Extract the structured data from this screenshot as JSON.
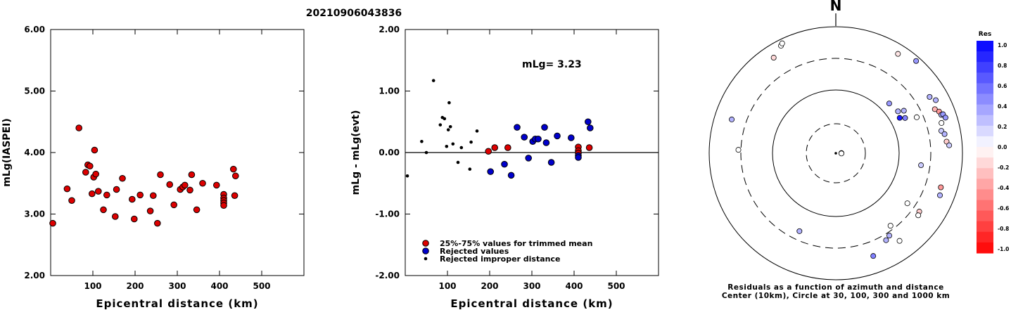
{
  "title": "20210906043836",
  "chart_data": [
    {
      "type": "scatter",
      "ylabel": "mLg(IASPEI)",
      "xlabel": "Epicentral distance (km)",
      "xlim": [
        0,
        600
      ],
      "ylim": [
        2.0,
        6.0
      ],
      "x_ticks": [
        "100",
        "200",
        "300",
        "400",
        "500"
      ],
      "y_ticks": [
        "2.00",
        "3.00",
        "4.00",
        "5.00",
        "6.00"
      ],
      "grid": false,
      "series": [
        {
          "color": "#dd0000",
          "points": [
            [
              5,
              2.85
            ],
            [
              39,
              3.41
            ],
            [
              50,
              3.22
            ],
            [
              67,
              4.4
            ],
            [
              83,
              3.68
            ],
            [
              88,
              3.8
            ],
            [
              93,
              3.78
            ],
            [
              98,
              3.33
            ],
            [
              102,
              3.6
            ],
            [
              104,
              4.04
            ],
            [
              107,
              3.65
            ],
            [
              113,
              3.37
            ],
            [
              125,
              3.07
            ],
            [
              133,
              3.31
            ],
            [
              153,
              2.96
            ],
            [
              156,
              3.4
            ],
            [
              170,
              3.58
            ],
            [
              193,
              3.24
            ],
            [
              198,
              2.92
            ],
            [
              212,
              3.31
            ],
            [
              236,
              3.05
            ],
            [
              243,
              3.3
            ],
            [
              253,
              2.85
            ],
            [
              260,
              3.64
            ],
            [
              282,
              3.48
            ],
            [
              292,
              3.15
            ],
            [
              307,
              3.4
            ],
            [
              313,
              3.44
            ],
            [
              318,
              3.47
            ],
            [
              330,
              3.39
            ],
            [
              334,
              3.64
            ],
            [
              346,
              3.07
            ],
            [
              360,
              3.5
            ],
            [
              393,
              3.47
            ],
            [
              410,
              3.32
            ],
            [
              410,
              3.26
            ],
            [
              410,
              3.22
            ],
            [
              410,
              3.18
            ],
            [
              410,
              3.14
            ],
            [
              433,
              3.73
            ],
            [
              436,
              3.3
            ],
            [
              438,
              3.62
            ]
          ]
        }
      ]
    },
    {
      "type": "scatter",
      "ylabel": "mLg - mLg(evt)",
      "xlabel": "Epicentral distance (km)",
      "annotation": "mLg= 3.23",
      "xlim": [
        0,
        600
      ],
      "ylim": [
        -2.0,
        2.0
      ],
      "x_ticks": [
        "100",
        "200",
        "300",
        "400",
        "500"
      ],
      "y_ticks": [
        "-2.00",
        "-1.00",
        "0.00",
        "1.00",
        "2.00"
      ],
      "grid": false,
      "legend_position": "bottom-center",
      "series": [
        {
          "name": "25%-75% values for trimmed mean",
          "color": "#dd0000",
          "marker": "circle",
          "points": [
            [
              197,
              0.02
            ],
            [
              212,
              0.08
            ],
            [
              243,
              0.08
            ],
            [
              410,
              0.09
            ],
            [
              410,
              0.03
            ],
            [
              410,
              -0.01
            ],
            [
              436,
              0.08
            ]
          ]
        },
        {
          "name": "Rejected values",
          "color": "#0000cc",
          "marker": "circle",
          "points": [
            [
              202,
              -0.31
            ],
            [
              235,
              -0.19
            ],
            [
              251,
              -0.37
            ],
            [
              265,
              0.41
            ],
            [
              282,
              0.25
            ],
            [
              292,
              -0.09
            ],
            [
              302,
              0.18
            ],
            [
              308,
              0.22
            ],
            [
              315,
              0.22
            ],
            [
              330,
              0.41
            ],
            [
              334,
              0.16
            ],
            [
              346,
              -0.16
            ],
            [
              360,
              0.27
            ],
            [
              393,
              0.24
            ],
            [
              410,
              -0.05
            ],
            [
              410,
              -0.08
            ],
            [
              433,
              0.5
            ],
            [
              438,
              0.4
            ]
          ]
        },
        {
          "name": "Rejected improper distance",
          "color": "#000000",
          "marker": "dot",
          "points": [
            [
              5,
              -0.38
            ],
            [
              39,
              0.18
            ],
            [
              50,
              0.0
            ],
            [
              67,
              1.17
            ],
            [
              83,
              0.45
            ],
            [
              88,
              0.57
            ],
            [
              93,
              0.55
            ],
            [
              98,
              0.1
            ],
            [
              102,
              0.37
            ],
            [
              104,
              0.81
            ],
            [
              107,
              0.42
            ],
            [
              113,
              0.14
            ],
            [
              125,
              -0.16
            ],
            [
              133,
              0.08
            ],
            [
              153,
              -0.27
            ],
            [
              156,
              0.17
            ],
            [
              170,
              0.35
            ]
          ]
        }
      ]
    },
    {
      "type": "polar_scatter",
      "north_label": "N",
      "caption_line1": "Residuals as a function of azimuth and distance",
      "caption_line2": "Center (10km), Circle at 30, 100, 300 and 1000 km",
      "colorbar_title": "Res",
      "colorbar_ticks": [
        "1.0",
        "0.8",
        "0.6",
        "0.4",
        "0.2",
        "0.0",
        "-0.2",
        "-0.4",
        "-0.6",
        "-0.8",
        "-1.0"
      ],
      "points": [
        {
          "az": 88,
          "dist_km": 8,
          "res": -0.2
        },
        {
          "az": 92,
          "dist_km": 8,
          "res": 0.0
        },
        {
          "az": 333,
          "dist_km": 800,
          "res": 0.0
        },
        {
          "az": 334,
          "dist_km": 850,
          "res": 0.0
        },
        {
          "az": 327,
          "dist_km": 620,
          "res": -0.15
        },
        {
          "az": 288,
          "dist_km": 520,
          "res": 0.3
        },
        {
          "az": 272,
          "dist_km": 330,
          "res": 0.0
        },
        {
          "az": 32,
          "dist_km": 700,
          "res": -0.1
        },
        {
          "az": 41,
          "dist_km": 850,
          "res": 0.4
        },
        {
          "az": 47,
          "dist_km": 140,
          "res": 0.4
        },
        {
          "az": 56,
          "dist_km": 150,
          "res": 0.3
        },
        {
          "az": 58,
          "dist_km": 180,
          "res": 0.3
        },
        {
          "az": 61,
          "dist_km": 140,
          "res": 0.9
        },
        {
          "az": 63,
          "dist_km": 165,
          "res": 0.5
        },
        {
          "az": 66,
          "dist_km": 240,
          "res": 0.0
        },
        {
          "az": 59,
          "dist_km": 520,
          "res": 0.3
        },
        {
          "az": 62,
          "dist_km": 600,
          "res": 0.3
        },
        {
          "az": 66,
          "dist_km": 500,
          "res": -0.3
        },
        {
          "az": 68,
          "dist_km": 560,
          "res": -0.4
        },
        {
          "az": 70,
          "dist_km": 580,
          "res": 0.3
        },
        {
          "az": 70,
          "dist_km": 620,
          "res": 0.4
        },
        {
          "az": 72,
          "dist_km": 650,
          "res": 0.4
        },
        {
          "az": 74,
          "dist_km": 530,
          "res": 0.0
        },
        {
          "az": 78,
          "dist_km": 490,
          "res": 0.2
        },
        {
          "az": 80,
          "dist_km": 540,
          "res": 0.3
        },
        {
          "az": 84,
          "dist_km": 560,
          "res": -0.2
        },
        {
          "az": 86,
          "dist_km": 610,
          "res": 0.2
        },
        {
          "az": 98,
          "dist_km": 220,
          "res": 0.2
        },
        {
          "az": 108,
          "dist_km": 540,
          "res": -0.4
        },
        {
          "az": 112,
          "dist_km": 580,
          "res": 0.3
        },
        {
          "az": 125,
          "dist_km": 230,
          "res": 0.0
        },
        {
          "az": 125,
          "dist_km": 390,
          "res": -0.2
        },
        {
          "az": 127,
          "dist_km": 410,
          "res": 0.0
        },
        {
          "az": 143,
          "dist_km": 260,
          "res": 0.0
        },
        {
          "az": 144,
          "dist_km": 500,
          "res": 0.0
        },
        {
          "az": 147,
          "dist_km": 340,
          "res": 0.3
        },
        {
          "az": 150,
          "dist_km": 370,
          "res": 0.3
        },
        {
          "az": 160,
          "dist_km": 520,
          "res": 0.5
        },
        {
          "az": 205,
          "dist_km": 220,
          "res": 0.3
        }
      ]
    }
  ]
}
